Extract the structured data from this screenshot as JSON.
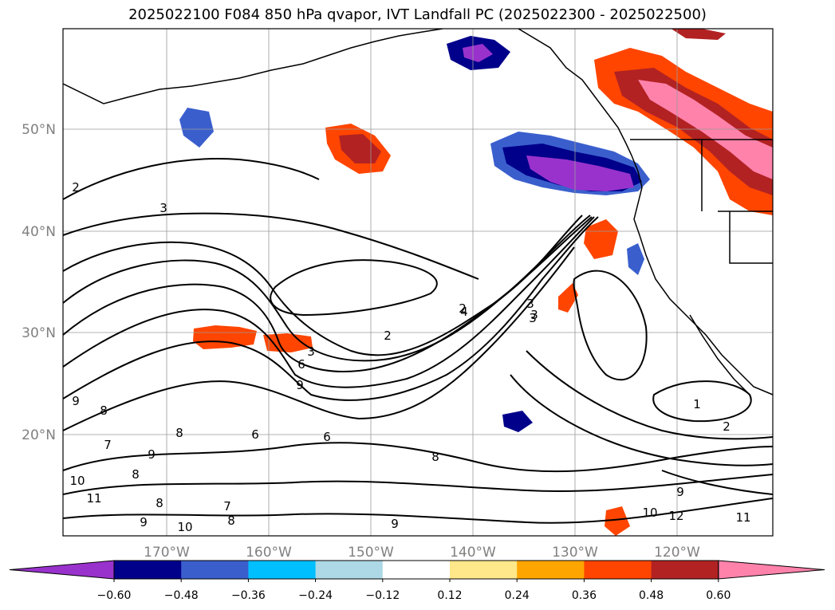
{
  "chart_data": {
    "type": "contour",
    "title": "2025022100 F084 850 hPa qvapor, IVT Landfall PC (2025022300 - 2025022500)",
    "lon_ticks": [
      "170°W",
      "160°W",
      "150°W",
      "140°W",
      "130°W",
      "120°W"
    ],
    "lat_ticks": [
      "50°N",
      "40°N",
      "30°N",
      "20°N"
    ],
    "colorbar": {
      "levels": [
        -0.6,
        -0.48,
        -0.36,
        -0.24,
        -0.12,
        0.12,
        0.24,
        0.36,
        0.48,
        0.6
      ],
      "tick_labels": [
        "−0.60",
        "−0.48",
        "−0.36",
        "−0.24",
        "−0.12",
        "0.12",
        "0.24",
        "0.36",
        "0.48",
        "0.60"
      ],
      "colors": [
        "#9932cc",
        "#00008b",
        "#3a5fcd",
        "#00bfff",
        "#add8e6",
        "#ffffff",
        "#ffe88a",
        "#ffa500",
        "#ff4500",
        "#b22222",
        "#ff82ab"
      ],
      "extend": "both"
    },
    "contour_labels": [
      "2",
      "3",
      "2",
      "3",
      "3",
      "2",
      "6",
      "9",
      "9",
      "8",
      "8",
      "6",
      "7",
      "6",
      "8",
      "9",
      "10",
      "11",
      "8",
      "7",
      "8",
      "9",
      "10",
      "9",
      "8",
      "4",
      "3",
      "3",
      "1",
      "2",
      "12",
      "11",
      "9",
      "10"
    ]
  }
}
